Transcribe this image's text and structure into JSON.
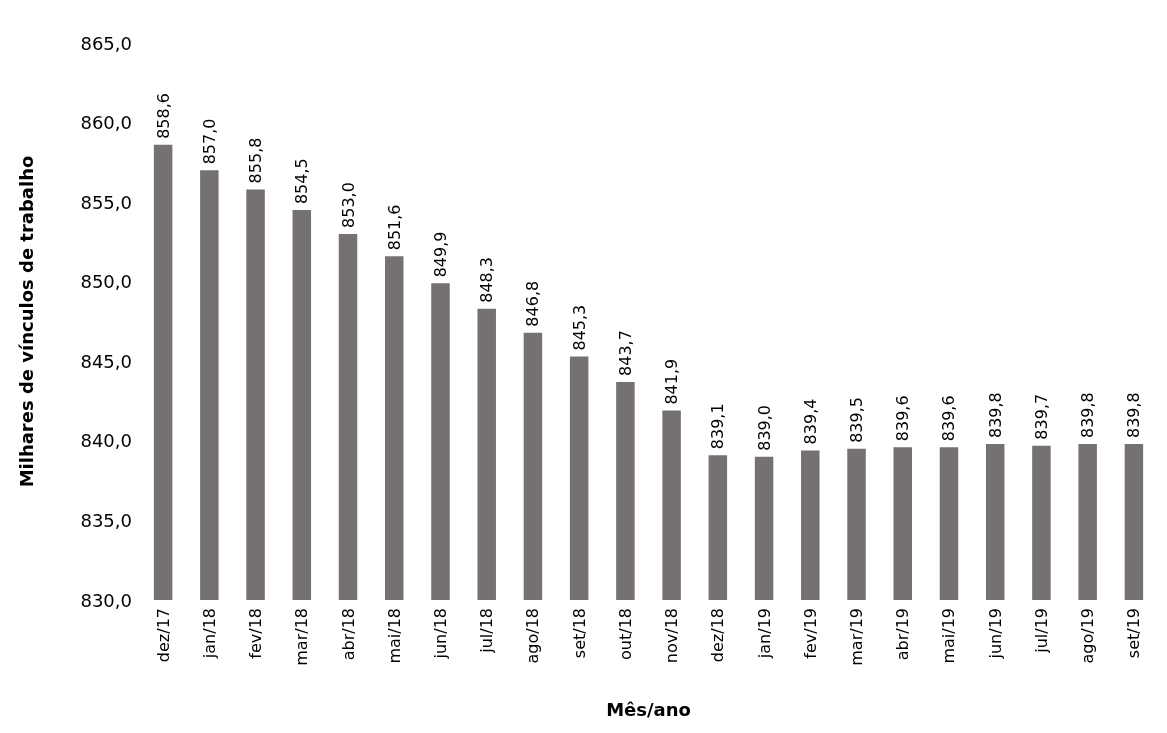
{
  "chart_data": {
    "type": "bar",
    "xlabel": "Mês/ano",
    "ylabel": "Milhares de vínculos de trabalho",
    "categories": [
      "dez/17",
      "jan/18",
      "fev/18",
      "mar/18",
      "abr/18",
      "mai/18",
      "jun/18",
      "jul/18",
      "ago/18",
      "set/18",
      "out/18",
      "nov/18",
      "dez/18",
      "jan/19",
      "fev/19",
      "mar/19",
      "abr/19",
      "mai/19",
      "jun/19",
      "jul/19",
      "ago/19",
      "set/19"
    ],
    "values": [
      858.6,
      857.0,
      855.8,
      854.5,
      853.0,
      851.6,
      849.9,
      848.3,
      846.8,
      845.3,
      843.7,
      841.9,
      839.1,
      839.0,
      839.4,
      839.5,
      839.6,
      839.6,
      839.8,
      839.7,
      839.8,
      839.8
    ],
    "value_labels": [
      "858,6",
      "857,0",
      "855,8",
      "854,5",
      "853,0",
      "851,6",
      "849,9",
      "848,3",
      "846,8",
      "845,3",
      "843,7",
      "841,9",
      "839,1",
      "839,0",
      "839,4",
      "839,5",
      "839,6",
      "839,6",
      "839,8",
      "839,7",
      "839,8",
      "839,8"
    ],
    "color": "#767171",
    "ylim": [
      830,
      865
    ],
    "yticks": [
      {
        "value": 830,
        "label": "830,0"
      },
      {
        "value": 835,
        "label": "835,0"
      },
      {
        "value": 840,
        "label": "840,0"
      },
      {
        "value": 845,
        "label": "845,0"
      },
      {
        "value": 850,
        "label": "850,0"
      },
      {
        "value": 855,
        "label": "855,0"
      },
      {
        "value": 860,
        "label": "860,0"
      },
      {
        "value": 865,
        "label": "865,0"
      }
    ]
  }
}
